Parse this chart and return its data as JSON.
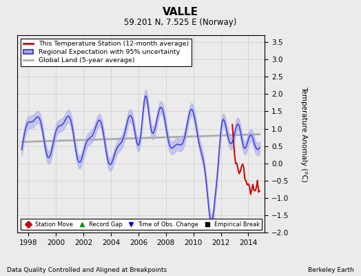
{
  "title": "VALLE",
  "subtitle": "59.201 N, 7.525 E (Norway)",
  "ylabel": "Temperature Anomaly (°C)",
  "xlabel_bottom": "Data Quality Controlled and Aligned at Breakpoints",
  "xlabel_right": "Berkeley Earth",
  "ylim": [
    -2.0,
    3.7
  ],
  "yticks": [
    -2,
    -1.5,
    -1,
    -0.5,
    0,
    0.5,
    1,
    1.5,
    2,
    2.5,
    3,
    3.5
  ],
  "xlim": [
    1997.2,
    2015.2
  ],
  "xticks": [
    1998,
    2000,
    2002,
    2004,
    2006,
    2008,
    2010,
    2012,
    2014
  ],
  "regional_color": "#4444dd",
  "regional_fill_color": "#aaaaee",
  "station_color": "#cc0000",
  "global_color": "#aaaaaa",
  "bg_color": "#ebebeb",
  "grid_color": "#d0d0d0",
  "legend_entries": [
    "This Temperature Station (12-month average)",
    "Regional Expectation with 95% uncertainty",
    "Global Land (5-year average)"
  ],
  "bottom_legend": [
    {
      "label": "Station Move",
      "color": "#cc0000",
      "marker": "D"
    },
    {
      "label": "Record Gap",
      "color": "#009900",
      "marker": "^"
    },
    {
      "label": "Time of Obs. Change",
      "color": "#0000cc",
      "marker": "v"
    },
    {
      "label": "Empirical Break",
      "color": "#000000",
      "marker": "s"
    }
  ]
}
